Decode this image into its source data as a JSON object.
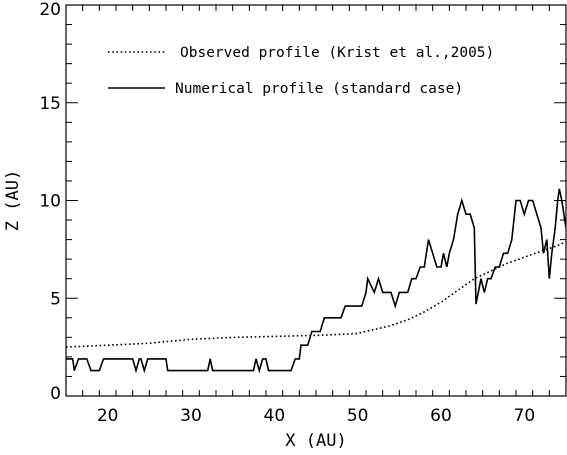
{
  "chart_data": {
    "type": "line",
    "xlabel": "X (AU)",
    "ylabel": "Z (AU)",
    "xlim": [
      15,
      75
    ],
    "ylim": [
      0,
      20
    ],
    "x_ticks": [
      20,
      30,
      40,
      50,
      60,
      70
    ],
    "y_ticks": [
      0,
      5,
      10,
      15,
      20
    ],
    "grid": false,
    "legend_position": "top-left",
    "series": [
      {
        "name": "Observed profile (Krist et al.,2005)",
        "style": "dotted",
        "color": "#000000",
        "points": [
          [
            15,
            2.5
          ],
          [
            20,
            2.6
          ],
          [
            25,
            2.7
          ],
          [
            30,
            2.9
          ],
          [
            35,
            3.0
          ],
          [
            40,
            3.05
          ],
          [
            45,
            3.1
          ],
          [
            48,
            3.15
          ],
          [
            50,
            3.2
          ],
          [
            52,
            3.4
          ],
          [
            54,
            3.6
          ],
          [
            56,
            3.9
          ],
          [
            58,
            4.3
          ],
          [
            60,
            4.8
          ],
          [
            62,
            5.4
          ],
          [
            64,
            6.0
          ],
          [
            66,
            6.4
          ],
          [
            68,
            6.8
          ],
          [
            70,
            7.1
          ],
          [
            72,
            7.4
          ],
          [
            74,
            7.7
          ],
          [
            75,
            7.9
          ]
        ]
      },
      {
        "name": "Numerical profile (standard case)",
        "style": "solid",
        "color": "#000000",
        "points": [
          [
            15,
            1.9
          ],
          [
            15.8,
            1.9
          ],
          [
            16,
            1.3
          ],
          [
            16.5,
            1.9
          ],
          [
            17.5,
            1.9
          ],
          [
            18,
            1.3
          ],
          [
            19,
            1.3
          ],
          [
            19.5,
            1.9
          ],
          [
            23,
            1.9
          ],
          [
            23.4,
            1.3
          ],
          [
            23.8,
            1.9
          ],
          [
            24,
            1.9
          ],
          [
            24.4,
            1.3
          ],
          [
            24.8,
            1.9
          ],
          [
            27,
            1.9
          ],
          [
            27.2,
            1.3
          ],
          [
            32,
            1.3
          ],
          [
            32.3,
            1.9
          ],
          [
            32.6,
            1.3
          ],
          [
            37.5,
            1.3
          ],
          [
            37.8,
            1.9
          ],
          [
            38.2,
            1.3
          ],
          [
            38.6,
            1.9
          ],
          [
            39,
            1.9
          ],
          [
            39.3,
            1.3
          ],
          [
            42,
            1.3
          ],
          [
            42.5,
            1.9
          ],
          [
            43,
            1.9
          ],
          [
            43.2,
            2.6
          ],
          [
            44,
            2.6
          ],
          [
            44.5,
            3.3
          ],
          [
            45.5,
            3.3
          ],
          [
            46,
            4.0
          ],
          [
            48,
            4.0
          ],
          [
            48.5,
            4.6
          ],
          [
            50.5,
            4.6
          ],
          [
            51,
            5.3
          ],
          [
            51.2,
            6.0
          ],
          [
            52,
            5.3
          ],
          [
            52.5,
            6.0
          ],
          [
            53,
            5.3
          ],
          [
            54,
            5.3
          ],
          [
            54.5,
            4.6
          ],
          [
            55,
            5.3
          ],
          [
            56,
            5.3
          ],
          [
            56.5,
            6.0
          ],
          [
            57,
            6.0
          ],
          [
            57.5,
            6.6
          ],
          [
            58,
            6.6
          ],
          [
            58.5,
            8.0
          ],
          [
            59,
            7.3
          ],
          [
            59.5,
            6.6
          ],
          [
            60,
            6.6
          ],
          [
            60.3,
            7.3
          ],
          [
            60.7,
            6.6
          ],
          [
            61,
            7.3
          ],
          [
            61.5,
            8.0
          ],
          [
            62,
            9.3
          ],
          [
            62.5,
            10.0
          ],
          [
            63,
            9.3
          ],
          [
            63.5,
            9.3
          ],
          [
            64,
            8.6
          ],
          [
            64.2,
            4.7
          ],
          [
            64.8,
            6.0
          ],
          [
            65.2,
            5.3
          ],
          [
            65.6,
            6.0
          ],
          [
            66,
            6.0
          ],
          [
            66.5,
            6.6
          ],
          [
            67,
            6.6
          ],
          [
            67.5,
            7.3
          ],
          [
            68,
            7.3
          ],
          [
            68.5,
            8.0
          ],
          [
            69,
            10.0
          ],
          [
            69.5,
            10.0
          ],
          [
            70,
            9.3
          ],
          [
            70.5,
            10.0
          ],
          [
            71,
            10.0
          ],
          [
            71.5,
            9.3
          ],
          [
            72,
            8.6
          ],
          [
            72.3,
            7.3
          ],
          [
            72.7,
            8.0
          ],
          [
            73,
            6.0
          ],
          [
            73.3,
            7.3
          ],
          [
            73.7,
            8.6
          ],
          [
            74,
            10.0
          ],
          [
            74.2,
            10.6
          ],
          [
            74.5,
            10.0
          ],
          [
            75,
            8.6
          ]
        ]
      }
    ]
  }
}
